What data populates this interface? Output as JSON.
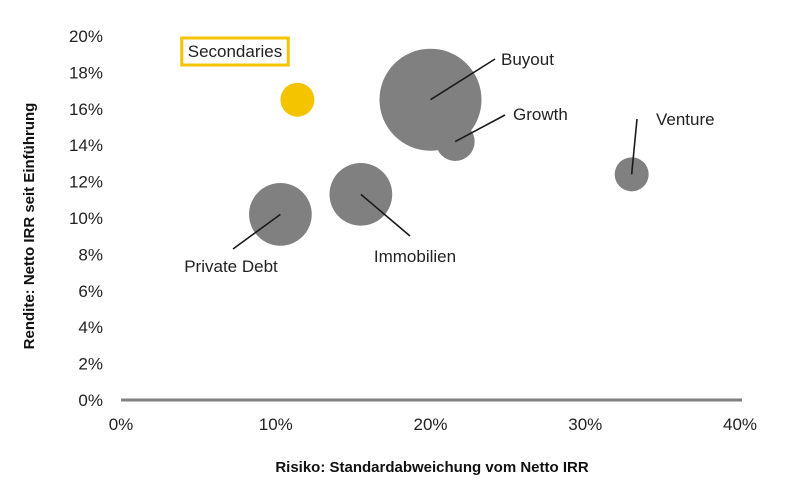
{
  "chart_data": {
    "type": "scatter",
    "subtype": "bubble",
    "title": "",
    "xlabel": "Risiko: Standardabweichung vom Netto IRR",
    "ylabel": "Rendite: Netto IRR seit Einführung",
    "xlim": [
      0,
      40
    ],
    "ylim": [
      0,
      20
    ],
    "x_ticks": [
      "0%",
      "10%",
      "20%",
      "30%",
      "40%"
    ],
    "y_ticks": [
      "0%",
      "2%",
      "4%",
      "6%",
      "8%",
      "10%",
      "12%",
      "14%",
      "16%",
      "18%",
      "20%"
    ],
    "grid": false,
    "colors": {
      "default": "#808080",
      "highlight": "#f5c400",
      "axis": "#808080"
    },
    "points": [
      {
        "label": "Secondaries",
        "x": 11.4,
        "y": 16.5,
        "size": 1.0,
        "highlight": true
      },
      {
        "label": "Buyout",
        "x": 20.0,
        "y": 16.5,
        "size": 9.0,
        "highlight": false
      },
      {
        "label": "Growth",
        "x": 21.6,
        "y": 14.2,
        "size": 1.3,
        "highlight": false
      },
      {
        "label": "Venture",
        "x": 33.0,
        "y": 12.4,
        "size": 1.0,
        "highlight": false
      },
      {
        "label": "Immobilien",
        "x": 15.5,
        "y": 11.3,
        "size": 3.4,
        "highlight": false
      },
      {
        "label": "Private Debt",
        "x": 10.3,
        "y": 10.2,
        "size": 3.4,
        "highlight": false
      }
    ]
  }
}
